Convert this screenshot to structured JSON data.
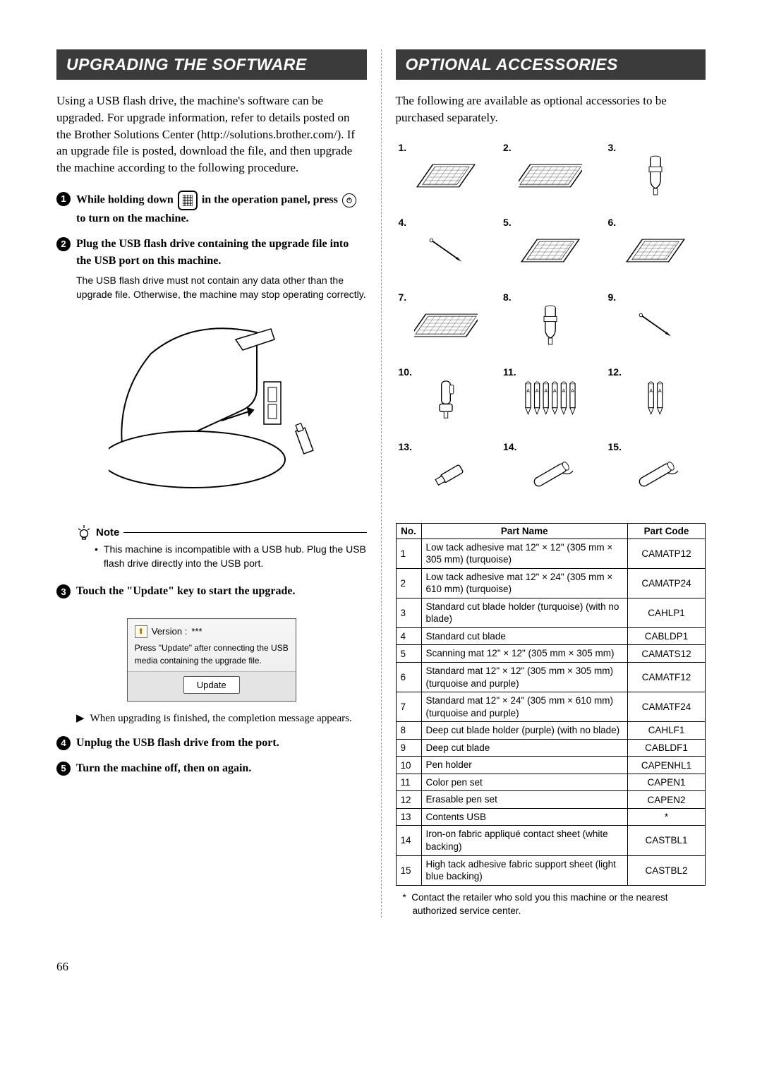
{
  "page_number": "66",
  "left": {
    "header": "UPGRADING THE SOFTWARE",
    "intro": "Using a USB flash drive, the machine's software can be upgraded. For upgrade information, refer to details posted on the Brother Solutions Center (http://solutions.brother.com/). If an upgrade file is posted, download the file, and then upgrade the machine according to the following procedure.",
    "step1_a": "While holding down",
    "step1_b": "in the operation panel, press",
    "step1_c": "to turn on the machine.",
    "step2": "Plug the USB flash drive containing the upgrade file into the USB port on this machine.",
    "step2_sub": "The USB flash drive must not contain any data other than the upgrade file. Otherwise, the machine may stop operating correctly.",
    "note_label": "Note",
    "note_body": "This machine is incompatible with a USB hub. Plug the USB flash drive directly into the USB port.",
    "step3": "Touch the \"Update\" key to start the upgrade.",
    "screen": {
      "version_label": "Version : ",
      "version_value": "***",
      "instruction": "Press \"Update\" after connecting the USB media containing the upgrade file.",
      "button": "Update"
    },
    "arrow_note": "When upgrading is finished, the completion message appears.",
    "step4": "Unplug the USB flash drive from the port.",
    "step5": "Turn the machine off, then on again."
  },
  "right": {
    "header": "OPTIONAL ACCESSORIES",
    "intro": "The following are available as optional accessories to be purchased separately.",
    "grid_labels": [
      "1.",
      "2.",
      "3.",
      "4.",
      "5.",
      "6.",
      "7.",
      "8.",
      "9.",
      "10.",
      "11.",
      "12.",
      "13.",
      "14.",
      "15."
    ],
    "table": {
      "columns": [
        "No.",
        "Part Name",
        "Part Code"
      ],
      "rows": [
        {
          "no": "1",
          "name": "Low tack adhesive mat 12\" × 12\" (305 mm × 305 mm) (turquoise)",
          "code": "CAMATP12"
        },
        {
          "no": "2",
          "name": "Low tack adhesive mat 12\" × 24\" (305 mm × 610 mm) (turquoise)",
          "code": "CAMATP24"
        },
        {
          "no": "3",
          "name": "Standard cut blade holder (turquoise) (with no blade)",
          "code": "CAHLP1"
        },
        {
          "no": "4",
          "name": "Standard cut blade",
          "code": "CABLDP1"
        },
        {
          "no": "5",
          "name": "Scanning mat 12\" × 12\" (305 mm × 305 mm)",
          "code": "CAMATS12"
        },
        {
          "no": "6",
          "name": "Standard mat 12\" × 12\" (305 mm × 305 mm) (turquoise and purple)",
          "code": "CAMATF12"
        },
        {
          "no": "7",
          "name": "Standard mat 12\" × 24\" (305 mm × 610 mm) (turquoise and purple)",
          "code": "CAMATF24"
        },
        {
          "no": "8",
          "name": "Deep cut blade holder (purple) (with no blade)",
          "code": "CAHLF1"
        },
        {
          "no": "9",
          "name": "Deep cut blade",
          "code": "CABLDF1"
        },
        {
          "no": "10",
          "name": "Pen holder",
          "code": "CAPENHL1"
        },
        {
          "no": "11",
          "name": "Color pen set",
          "code": "CAPEN1"
        },
        {
          "no": "12",
          "name": "Erasable pen set",
          "code": "CAPEN2"
        },
        {
          "no": "13",
          "name": "Contents USB",
          "code": "*"
        },
        {
          "no": "14",
          "name": "Iron-on fabric appliqué contact sheet (white backing)",
          "code": "CASTBL1"
        },
        {
          "no": "15",
          "name": "High tack adhesive fabric support sheet (light blue backing)",
          "code": "CASTBL2"
        }
      ]
    },
    "footnote_marker": "*",
    "footnote": "Contact the retailer who sold you this machine or the nearest authorized service center."
  }
}
